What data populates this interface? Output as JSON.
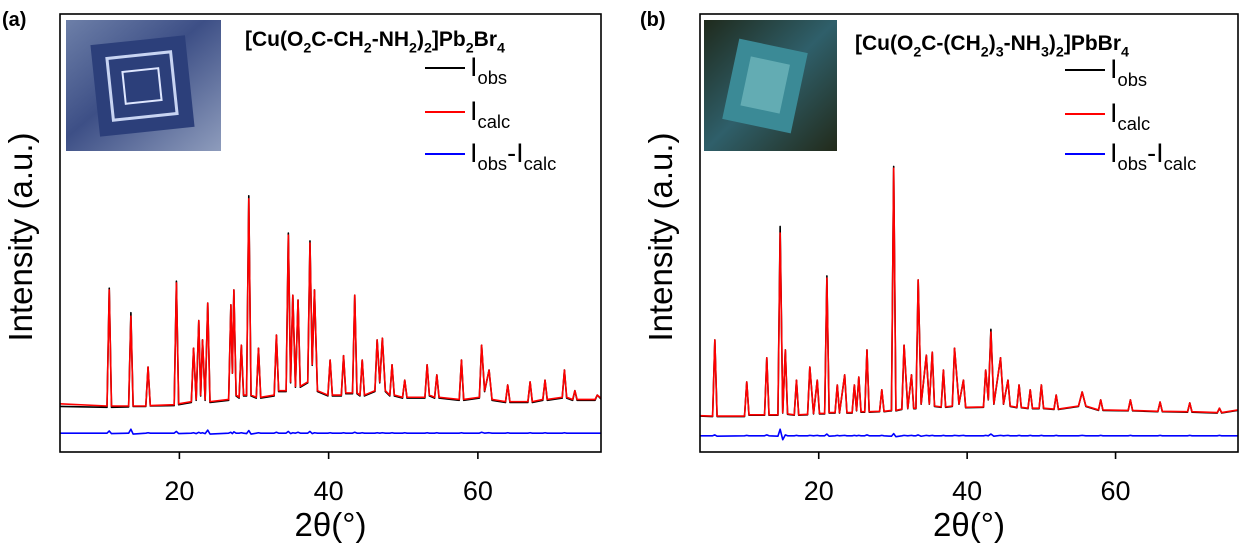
{
  "chart_data": [
    {
      "type": "line",
      "panel_label": "(a)",
      "title": "[Cu(O2C-CH2-NH2)2]Pb2Br4",
      "xlabel": "2θ(°)",
      "ylabel": "Intensity (a.u.)",
      "xlim": [
        4,
        76.5
      ],
      "xticks": [
        20,
        40,
        60
      ],
      "ylim": [
        0,
        100
      ],
      "legend": "upper right",
      "x": [
        4,
        10.3,
        10.6,
        10.9,
        13.2,
        13.5,
        13.8,
        15.5,
        15.8,
        16.1,
        19.3,
        19.6,
        19.9,
        21.6,
        21.9,
        22.25,
        22.6,
        22.85,
        23.1,
        23.45,
        23.8,
        24.1,
        26.6,
        26.9,
        27.1,
        27.3,
        27.6,
        28.0,
        28.3,
        28.6,
        29.0,
        29.3,
        29.6,
        30.3,
        30.6,
        30.9,
        32.7,
        33.0,
        33.3,
        34.3,
        34.6,
        34.9,
        35.2,
        35.55,
        35.9,
        36.2,
        37.2,
        37.5,
        37.8,
        38.1,
        38.5,
        39.9,
        40.2,
        40.5,
        41.7,
        42.0,
        42.3,
        43.2,
        43.5,
        43.8,
        44.2,
        44.5,
        44.8,
        46.2,
        46.5,
        46.85,
        47.2,
        47.6,
        48.2,
        48.5,
        48.8,
        49.9,
        50.2,
        50.5,
        52.9,
        53.2,
        53.5,
        54.2,
        54.5,
        54.8,
        57.5,
        57.8,
        58.1,
        60.2,
        60.5,
        60.9,
        61.5,
        61.9,
        63.7,
        64.0,
        64.3,
        66.7,
        67.0,
        67.3,
        68.7,
        69.0,
        69.3,
        71.3,
        71.6,
        71.9,
        72.7,
        73.0,
        73.3,
        75.7,
        76.0,
        76.5
      ],
      "series": [
        {
          "name": "Iobs",
          "color": "#000000",
          "values": [
            10.4,
            10.2,
            37.4,
            10.2,
            10.3,
            31.8,
            10.4,
            10.4,
            19.4,
            10.5,
            10.6,
            39,
            10.8,
            11.3,
            23.7,
            11.8,
            30,
            12.8,
            25.6,
            11.8,
            34,
            11.3,
            11.8,
            33.6,
            18,
            37,
            12.8,
            12.3,
            24.4,
            12.8,
            12.8,
            58.5,
            12.8,
            12.3,
            23.7,
            12.3,
            12.8,
            26.7,
            13.8,
            13.8,
            50,
            15.8,
            35.8,
            14.8,
            34.7,
            14.8,
            15.8,
            48.2,
            19.8,
            37,
            13.8,
            12.8,
            21,
            12.8,
            12.8,
            22,
            13.3,
            13.3,
            35.8,
            13.3,
            12.8,
            21,
            12.8,
            13.8,
            25.6,
            15.8,
            26,
            13.8,
            12.8,
            19.9,
            12.8,
            12.3,
            16.4,
            12.3,
            12.3,
            19.9,
            12.8,
            12.3,
            17.6,
            12.3,
            11.8,
            21,
            11.8,
            12.3,
            24.4,
            13.8,
            18.7,
            11.8,
            11.3,
            15.3,
            11.3,
            11.3,
            16,
            11.3,
            11.8,
            16.4,
            11.8,
            12.3,
            18.7,
            12.3,
            11.8,
            14,
            11.8,
            11.8,
            13,
            12.1
          ]
        },
        {
          "name": "Icalc",
          "color": "#ff0000",
          "values": [
            11,
            10.5,
            37,
            10.5,
            10.5,
            31,
            10.5,
            10.5,
            19.4,
            10.6,
            10.8,
            38.6,
            11,
            11.5,
            23.7,
            12,
            30,
            13,
            25.6,
            12,
            34,
            11.5,
            12,
            33.6,
            18,
            37,
            13,
            12.5,
            24.4,
            13,
            13,
            57.8,
            13,
            12.5,
            23.7,
            12.5,
            13,
            26.7,
            14,
            14,
            49.5,
            16,
            35.8,
            15,
            34.7,
            15,
            16,
            47.7,
            20,
            37,
            14,
            13,
            21,
            13,
            13,
            22,
            13.5,
            13.5,
            35.8,
            13.5,
            13,
            21,
            13,
            14,
            25.6,
            16,
            26,
            14,
            13,
            19.9,
            13,
            12.5,
            16.4,
            12.5,
            12.5,
            19.9,
            13,
            12.5,
            17.6,
            12.5,
            12,
            21,
            12,
            12.5,
            24.4,
            14,
            18.7,
            12,
            11.5,
            15.3,
            11.5,
            11.5,
            16,
            11.5,
            12,
            16.4,
            12,
            12.5,
            18.7,
            12.5,
            12,
            14,
            12,
            12,
            13,
            12.3
          ]
        },
        {
          "name": "Iobs-Icalc",
          "color": "#0000ff",
          "values": [
            4.3,
            4.3,
            4.8,
            4.2,
            4.3,
            5.2,
            4.1,
            4.3,
            4.4,
            4.3,
            4.3,
            4.7,
            4.2,
            4.3,
            4.4,
            4.2,
            4.5,
            4.3,
            4.4,
            4.2,
            5.0,
            4.1,
            4.3,
            4.5,
            4.2,
            4.6,
            4.3,
            4.3,
            4.4,
            4.3,
            4.2,
            4.9,
            4.1,
            4.3,
            4.4,
            4.3,
            4.3,
            4.5,
            4.3,
            4.3,
            4.7,
            4.2,
            4.4,
            4.3,
            4.5,
            4.3,
            4.3,
            4.7,
            4.2,
            4.4,
            4.3,
            4.3,
            4.4,
            4.3,
            4.3,
            4.4,
            4.3,
            4.3,
            4.5,
            4.3,
            4.3,
            4.4,
            4.3,
            4.3,
            4.4,
            4.3,
            4.4,
            4.3,
            4.3,
            4.4,
            4.3,
            4.3,
            4.4,
            4.3,
            4.3,
            4.4,
            4.3,
            4.3,
            4.4,
            4.3,
            4.3,
            4.4,
            4.3,
            4.3,
            4.5,
            4.3,
            4.4,
            4.3,
            4.3,
            4.4,
            4.3,
            4.3,
            4.4,
            4.3,
            4.3,
            4.4,
            4.3,
            4.3,
            4.4,
            4.3,
            4.3,
            4.3,
            4.3,
            4.3,
            4.3,
            4.3
          ]
        }
      ]
    },
    {
      "type": "line",
      "panel_label": "(b)",
      "title": "[Cu(O2C-(CH2)3-NH3)2]PbBr4",
      "xlabel": "2θ(°)",
      "ylabel": "Intensity (a.u.)",
      "xlim": [
        4,
        76.5
      ],
      "xticks": [
        20,
        40,
        60
      ],
      "ylim": [
        0,
        100
      ],
      "legend": "upper right",
      "x": [
        4,
        5.7,
        6.0,
        6.3,
        10.0,
        10.3,
        10.6,
        12.7,
        13.0,
        13.3,
        14.5,
        14.8,
        15.15,
        15.5,
        15.8,
        16.7,
        17.0,
        17.3,
        18.5,
        18.8,
        19.3,
        19.8,
        20.1,
        20.8,
        21.1,
        21.4,
        22.2,
        22.5,
        22.8,
        23.5,
        23.8,
        24.5,
        24.8,
        25.1,
        25.4,
        25.7,
        26.2,
        26.5,
        26.8,
        28.2,
        28.5,
        28.8,
        29.8,
        30.1,
        30.4,
        31.2,
        31.5,
        32.0,
        32.5,
        32.8,
        33.1,
        33.4,
        33.8,
        34.5,
        34.9,
        35.3,
        35.6,
        36.5,
        36.8,
        37.1,
        38.0,
        38.3,
        38.9,
        39.5,
        39.8,
        42.2,
        42.5,
        42.85,
        43.2,
        43.6,
        44.5,
        44.9,
        45.5,
        45.8,
        46.7,
        47.0,
        47.3,
        48.2,
        48.5,
        48.8,
        49.7,
        50.0,
        50.3,
        51.7,
        52.0,
        52.3,
        55.0,
        55.5,
        56.0,
        57.7,
        58.0,
        58.3,
        61.7,
        62.0,
        62.3,
        65.7,
        66.0,
        66.3,
        69.7,
        70.0,
        70.3,
        73.7,
        74.0,
        74.3,
        76.5
      ],
      "series": [
        {
          "name": "Iobs",
          "color": "#000000",
          "values": [
            8.2,
            8.1,
            25.6,
            8.1,
            8.1,
            16,
            8.4,
            8.4,
            21.5,
            8.4,
            8.4,
            51.5,
            8.9,
            23.3,
            8.6,
            8.4,
            16.4,
            8.4,
            8.5,
            19.4,
            8.7,
            16.4,
            8.7,
            8.7,
            40.2,
            8.9,
            8.9,
            15.3,
            8.9,
            17.6,
            8.9,
            8.9,
            15.3,
            9.4,
            17.1,
            9.1,
            9.1,
            23.3,
            9.1,
            9.2,
            14.2,
            9.2,
            9.4,
            65.2,
            9.4,
            9.7,
            24.4,
            9.9,
            17.6,
            9.9,
            9.9,
            39.3,
            10.9,
            22.1,
            10.9,
            22.8,
            10.4,
            10.2,
            18.7,
            10.2,
            10.4,
            23.7,
            10.9,
            16.4,
            10.1,
            10.2,
            18.7,
            11.9,
            28,
            10.9,
            21.5,
            10.9,
            16.4,
            10.4,
            10.1,
            15.3,
            10.1,
            9.9,
            14.2,
            9.9,
            9.9,
            15.3,
            9.9,
            9.7,
            13,
            9.7,
            10.4,
            13.7,
            10.4,
            9.5,
            11.9,
            9.5,
            9.4,
            11.9,
            9.4,
            9.2,
            11.4,
            9.2,
            9.1,
            11.2,
            9.1,
            8.9,
            10,
            8.9,
            9.5
          ]
        },
        {
          "name": "Icalc",
          "color": "#ff0000",
          "values": [
            8.3,
            8.2,
            25.6,
            8.2,
            8.2,
            16,
            8.5,
            8.5,
            21.5,
            8.5,
            8.5,
            50,
            9,
            23.3,
            8.7,
            8.5,
            16.4,
            8.5,
            8.6,
            19.4,
            8.8,
            16.4,
            8.8,
            8.8,
            39.7,
            9,
            9,
            15.3,
            9,
            17.6,
            9,
            9,
            15.3,
            9.5,
            17.1,
            9.2,
            9.2,
            23.3,
            9.2,
            9.3,
            14.2,
            9.3,
            9.5,
            64.8,
            9.5,
            9.8,
            24.4,
            10,
            17.6,
            10,
            10,
            39.3,
            11,
            22.1,
            11,
            22.8,
            10.5,
            10.3,
            18.7,
            10.3,
            10.5,
            23.7,
            11,
            16.4,
            10.2,
            10.3,
            18.7,
            12,
            27.4,
            11,
            21.5,
            11,
            16.4,
            10.5,
            10.2,
            15.3,
            10.2,
            10,
            14.2,
            10,
            10,
            15.3,
            10,
            9.8,
            13,
            9.8,
            10.5,
            13.7,
            10.5,
            9.6,
            11.9,
            9.6,
            9.5,
            11.9,
            9.5,
            9.3,
            11.4,
            9.3,
            9.2,
            11.2,
            9.2,
            9,
            10,
            9,
            9.6
          ]
        },
        {
          "name": "Iobs-Icalc",
          "color": "#0000ff",
          "values": [
            3.7,
            3.7,
            3.9,
            3.6,
            3.7,
            3.8,
            3.7,
            3.7,
            3.9,
            3.7,
            3.6,
            5.2,
            2.8,
            3.9,
            3.7,
            3.7,
            3.8,
            3.7,
            3.7,
            3.8,
            3.7,
            3.8,
            3.7,
            3.7,
            4.1,
            3.6,
            3.7,
            3.8,
            3.7,
            3.8,
            3.7,
            3.7,
            3.8,
            3.7,
            3.8,
            3.7,
            3.7,
            3.9,
            3.7,
            3.7,
            3.8,
            3.7,
            3.6,
            4.2,
            3.5,
            3.7,
            3.8,
            3.7,
            3.8,
            3.7,
            3.7,
            3.9,
            3.6,
            3.8,
            3.7,
            3.8,
            3.7,
            3.7,
            3.8,
            3.7,
            3.7,
            3.8,
            3.7,
            3.8,
            3.7,
            3.7,
            3.8,
            3.7,
            4.1,
            3.6,
            3.8,
            3.7,
            3.8,
            3.7,
            3.7,
            3.8,
            3.7,
            3.7,
            3.8,
            3.7,
            3.7,
            3.8,
            3.7,
            3.7,
            3.8,
            3.7,
            3.7,
            3.8,
            3.7,
            3.7,
            3.8,
            3.7,
            3.7,
            3.8,
            3.7,
            3.7,
            3.8,
            3.7,
            3.7,
            3.8,
            3.7,
            3.7,
            3.8,
            3.7,
            3.7
          ]
        }
      ]
    }
  ]
}
